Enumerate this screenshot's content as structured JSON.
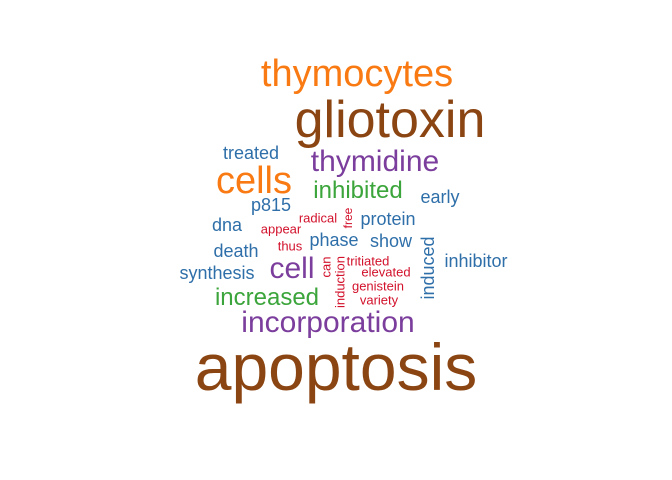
{
  "colors": {
    "brown": "#8B4513",
    "orange": "#F97A13",
    "purple": "#7B3E9C",
    "green": "#3BA53B",
    "blue": "#2F6FA9",
    "red": "#D2112B"
  },
  "words": [
    {
      "text": "apoptosis",
      "color": "brown",
      "rank": 1
    },
    {
      "text": "gliotoxin",
      "color": "brown",
      "rank": 2
    },
    {
      "text": "thymocytes",
      "color": "orange",
      "rank": 3
    },
    {
      "text": "cells",
      "color": "orange",
      "rank": 3
    },
    {
      "text": "incorporation",
      "color": "purple",
      "rank": 4
    },
    {
      "text": "thymidine",
      "color": "purple",
      "rank": 4
    },
    {
      "text": "cell",
      "color": "purple",
      "rank": 4
    },
    {
      "text": "increased",
      "color": "green",
      "rank": 5
    },
    {
      "text": "inhibited",
      "color": "green",
      "rank": 5
    },
    {
      "text": "treated",
      "color": "blue",
      "rank": 6
    },
    {
      "text": "early",
      "color": "blue",
      "rank": 6
    },
    {
      "text": "p815",
      "color": "blue",
      "rank": 6
    },
    {
      "text": "dna",
      "color": "blue",
      "rank": 6
    },
    {
      "text": "protein",
      "color": "blue",
      "rank": 6
    },
    {
      "text": "death",
      "color": "blue",
      "rank": 6
    },
    {
      "text": "phase",
      "color": "blue",
      "rank": 6
    },
    {
      "text": "show",
      "color": "blue",
      "rank": 6
    },
    {
      "text": "induced",
      "color": "blue",
      "rank": 6,
      "vertical": true
    },
    {
      "text": "inhibitor",
      "color": "blue",
      "rank": 6
    },
    {
      "text": "synthesis",
      "color": "blue",
      "rank": 6
    },
    {
      "text": "radical",
      "color": "red",
      "rank": 7
    },
    {
      "text": "free",
      "color": "red",
      "rank": 7,
      "vertical": true
    },
    {
      "text": "appear",
      "color": "red",
      "rank": 7
    },
    {
      "text": "thus",
      "color": "red",
      "rank": 7
    },
    {
      "text": "can",
      "color": "red",
      "rank": 7,
      "vertical": true
    },
    {
      "text": "induction",
      "color": "red",
      "rank": 7,
      "vertical": true
    },
    {
      "text": "tritiated",
      "color": "red",
      "rank": 7
    },
    {
      "text": "elevated",
      "color": "red",
      "rank": 7
    },
    {
      "text": "genistein",
      "color": "red",
      "rank": 7
    },
    {
      "text": "variety",
      "color": "red",
      "rank": 7
    }
  ]
}
